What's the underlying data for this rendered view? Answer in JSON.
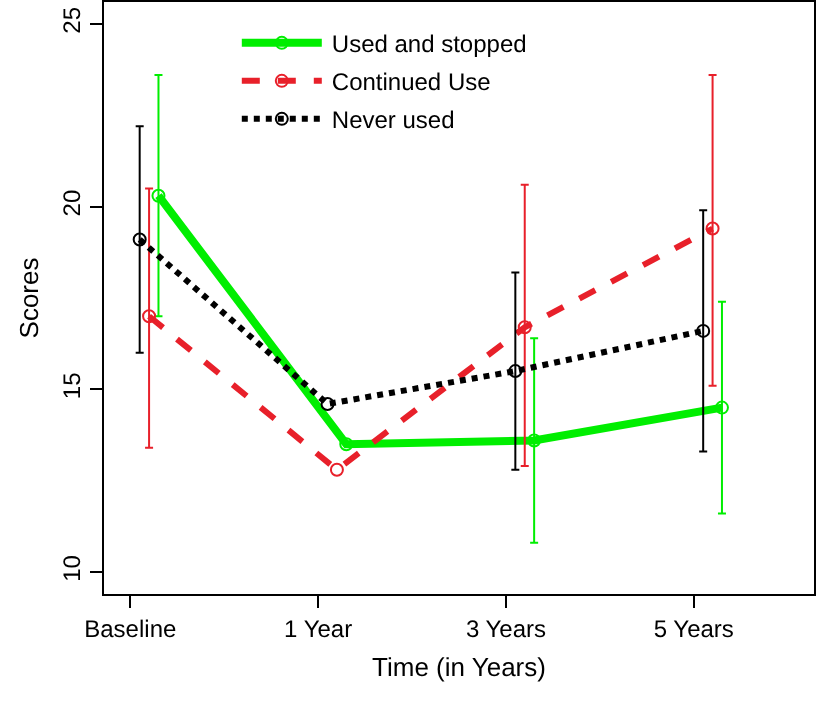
{
  "chart_data": {
    "type": "line",
    "xlabel": "Time (in Years)",
    "ylabel": "Scores",
    "categories": [
      "Baseline",
      "1 Year",
      "3 Years",
      "5 Years"
    ],
    "ylim": [
      9.4,
      25.6
    ],
    "yticks": [
      10,
      15,
      20,
      25
    ],
    "grid": false,
    "legend": "top",
    "marker": "circle",
    "series": [
      {
        "name": "Used and stopped",
        "color": "#00ee00",
        "line_style": "solid",
        "values": [
          20.3,
          13.5,
          13.6,
          14.5
        ],
        "errors": [
          [
            17.0,
            23.6
          ],
          null,
          [
            10.8,
            16.4
          ],
          [
            11.6,
            17.4
          ]
        ]
      },
      {
        "name": "Continued Use",
        "color": "#e8202a",
        "line_style": "dashed",
        "values": [
          17.0,
          12.8,
          16.7,
          19.4
        ],
        "errors": [
          [
            13.4,
            20.5
          ],
          null,
          [
            12.9,
            20.6
          ],
          [
            15.1,
            23.6
          ]
        ]
      },
      {
        "name": "Never used",
        "color": "#000000",
        "line_style": "dotted",
        "values": [
          19.1,
          14.6,
          15.5,
          16.6
        ],
        "errors": [
          [
            16.0,
            22.2
          ],
          null,
          [
            12.8,
            18.2
          ],
          [
            13.3,
            19.9
          ]
        ]
      }
    ]
  }
}
